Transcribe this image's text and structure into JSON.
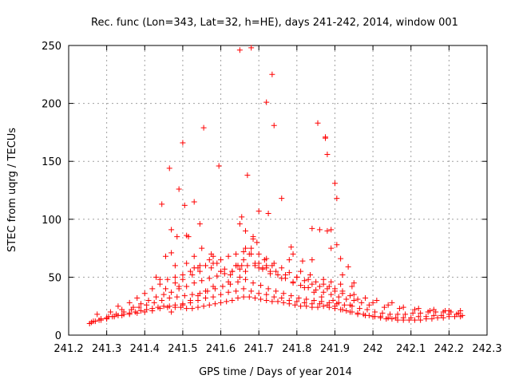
{
  "chart_data": {
    "type": "scatter",
    "title": "Rec. func (Lon=343, Lat=32, h=HE), days 241-242, 2014, window 001",
    "xlabel": "GPS time / Days of year 2014",
    "ylabel": "STEC from uqrg / TECUs",
    "xlim": [
      241.2,
      242.3
    ],
    "ylim": [
      0,
      250
    ],
    "xticks": [
      "241.2",
      "241.3",
      "241.4",
      "241.5",
      "241.6",
      "241.7",
      "241.8",
      "241.9",
      "242",
      "242.1",
      "242.2",
      "242.3"
    ],
    "yticks": [
      "0",
      "50",
      "100",
      "150",
      "200",
      "250"
    ],
    "grid": true,
    "marker": "plus",
    "color": "#ff0000",
    "series": [
      {
        "x": [
          241.255,
          241.27,
          241.285,
          241.3,
          241.315,
          241.33,
          241.345,
          241.36,
          241.375,
          241.39,
          241.405,
          241.42,
          241.435,
          241.45,
          241.465,
          241.48,
          241.495,
          241.51,
          241.525,
          241.54,
          241.555,
          241.57,
          241.585,
          241.6,
          241.615,
          241.63,
          241.645,
          241.66,
          241.675,
          241.69,
          241.705,
          241.72,
          241.735,
          241.75,
          241.765,
          241.78,
          241.795,
          241.81,
          241.825,
          241.84,
          241.855,
          241.87,
          241.885,
          241.9,
          241.915,
          241.93,
          241.945,
          241.96,
          241.975,
          241.99,
          242.005,
          242.02,
          242.035,
          242.05,
          242.065,
          242.08,
          242.095,
          242.11,
          242.125,
          242.14,
          242.155,
          242.17,
          242.185,
          242.2,
          242.215,
          242.23,
          241.26,
          241.28,
          241.3,
          241.32,
          241.34,
          241.36,
          241.38,
          241.4,
          241.42,
          241.44,
          241.46,
          241.48,
          241.5,
          241.52,
          241.54,
          241.56,
          241.58,
          241.6,
          241.62,
          241.64,
          241.66,
          241.68,
          241.7,
          241.72,
          241.74,
          241.76,
          241.78,
          241.8,
          241.82,
          241.84,
          241.86,
          241.88,
          241.9,
          241.92,
          241.94,
          241.96,
          241.98,
          242.0,
          242.02,
          242.04,
          242.06,
          242.08,
          242.1,
          242.12,
          242.14,
          242.16,
          242.18,
          242.2,
          242.22,
          242.235,
          241.265,
          241.285,
          241.305,
          241.325,
          241.345,
          241.365,
          241.385,
          241.405,
          241.425,
          241.445,
          241.465,
          241.485,
          241.505,
          241.525,
          241.545,
          241.565,
          241.585,
          241.605,
          241.625,
          241.645,
          241.665,
          241.685,
          241.705,
          241.725,
          241.745,
          241.765,
          241.785,
          241.805,
          241.825,
          241.845,
          241.865,
          241.885,
          241.905,
          241.925,
          241.945,
          241.965,
          241.985,
          242.005,
          242.025,
          242.045,
          242.065,
          242.085,
          242.105,
          242.125,
          242.145,
          242.165,
          242.185,
          242.205,
          242.225,
          241.275,
          241.31,
          241.34,
          241.37,
          241.39,
          241.41,
          241.43,
          241.45,
          241.47,
          241.49,
          241.51,
          241.53,
          241.55,
          241.57,
          241.59,
          241.61,
          241.63,
          241.65,
          241.67,
          241.69,
          241.71,
          241.73,
          241.75,
          241.77,
          241.79,
          241.81,
          241.83,
          241.85,
          241.87,
          241.89,
          241.91,
          241.93,
          241.95,
          241.97,
          241.99,
          242.03,
          242.07,
          242.11,
          242.15,
          242.19,
          242.23,
          241.33,
          241.36,
          241.38,
          241.4,
          241.42,
          241.44,
          241.46,
          241.48,
          241.5,
          241.52,
          241.54,
          241.56,
          241.58,
          241.6,
          241.62,
          241.64,
          241.66,
          241.68,
          241.7,
          241.72,
          241.74,
          241.76,
          241.78,
          241.8,
          241.82,
          241.84,
          241.86,
          241.88,
          241.9,
          241.92,
          241.94,
          241.96,
          242.0,
          242.04,
          242.08,
          242.12,
          242.16,
          242.2,
          241.455,
          241.48,
          241.5,
          241.525,
          241.545,
          241.575,
          241.6,
          241.625,
          241.645,
          241.66,
          241.68,
          241.7,
          241.72,
          241.745,
          241.77,
          241.8,
          241.83,
          241.85,
          241.87,
          241.885,
          241.9,
          241.92,
          241.95,
          241.98,
          242.01,
          242.05,
          241.47,
          241.5,
          241.52,
          241.54,
          241.56,
          241.58,
          241.62,
          241.65,
          241.665,
          241.69,
          241.71,
          241.73,
          241.76,
          241.79,
          241.82,
          241.845,
          241.865,
          241.895,
          241.91,
          241.94,
          241.43,
          241.455,
          241.47,
          241.49,
          241.505,
          241.515,
          241.53,
          241.55,
          241.57,
          241.59,
          241.61,
          241.63,
          241.655,
          241.675,
          241.695,
          241.72,
          241.75,
          241.78,
          241.81,
          241.835,
          241.87,
          241.89,
          241.915,
          241.945,
          241.445,
          241.465,
          241.48,
          241.5,
          241.51,
          241.53,
          241.545,
          241.555,
          241.58,
          241.595,
          241.64,
          241.655,
          241.665,
          241.67,
          241.685,
          241.7,
          241.715,
          241.725,
          241.735,
          241.74,
          241.76,
          241.785,
          241.815,
          241.84,
          241.86,
          241.875,
          241.88,
          241.89,
          241.9,
          241.905,
          241.92,
          241.95,
          241.47,
          241.485,
          241.51,
          241.53,
          241.545,
          241.575,
          241.65,
          241.665,
          241.685,
          241.72,
          241.735,
          241.855,
          241.875,
          241.88,
          241.905,
          241.44,
          241.49,
          241.6,
          241.64,
          241.7,
          241.79,
          241.84,
          241.89,
          241.915,
          241.935
        ],
        "y": [
          10,
          12,
          13,
          14,
          16,
          17,
          18,
          19,
          20,
          21,
          22,
          23,
          24,
          25,
          25,
          24,
          24,
          23,
          23,
          24,
          25,
          26,
          27,
          28,
          29,
          30,
          32,
          33,
          33,
          32,
          31,
          30,
          29,
          29,
          28,
          27,
          26,
          25,
          25,
          24,
          24,
          25,
          24,
          23,
          22,
          21,
          20,
          19,
          18,
          17,
          16,
          15,
          14,
          14,
          13,
          13,
          13,
          13,
          13,
          14,
          14,
          15,
          15,
          16,
          16,
          16,
          11,
          13,
          15,
          16,
          17,
          18,
          19,
          20,
          21,
          23,
          24,
          26,
          27,
          28,
          30,
          32,
          33,
          35,
          37,
          38,
          40,
          38,
          36,
          35,
          33,
          32,
          30,
          29,
          28,
          27,
          27,
          26,
          25,
          22,
          20,
          18,
          17,
          16,
          16,
          15,
          15,
          15,
          15,
          16,
          16,
          17,
          17,
          18,
          18,
          17,
          12,
          14,
          16,
          18,
          20,
          22,
          24,
          26,
          28,
          30,
          32,
          33,
          34,
          35,
          36,
          38,
          40,
          42,
          44,
          46,
          48,
          45,
          43,
          40,
          38,
          36,
          34,
          32,
          31,
          30,
          29,
          28,
          27,
          26,
          25,
          23,
          22,
          20,
          19,
          18,
          18,
          18,
          19,
          19,
          20,
          20,
          20,
          20,
          19,
          18,
          20,
          22,
          24,
          27,
          30,
          33,
          35,
          37,
          40,
          42,
          45,
          47,
          49,
          51,
          53,
          55,
          57,
          60,
          62,
          58,
          55,
          52,
          49,
          46,
          43,
          41,
          39,
          37,
          35,
          33,
          31,
          30,
          28,
          26,
          24,
          23,
          22,
          21,
          21,
          21,
          25,
          28,
          32,
          36,
          40,
          44,
          48,
          50,
          52,
          55,
          58,
          60,
          62,
          65,
          68,
          70,
          72,
          75,
          70,
          66,
          62,
          58,
          54,
          50,
          47,
          44,
          42,
          40,
          38,
          36,
          34,
          31,
          28,
          26,
          24,
          23,
          22,
          21,
          40,
          45,
          48,
          52,
          55,
          58,
          55,
          52,
          60,
          65,
          70,
          62,
          58,
          55,
          52,
          50,
          48,
          46,
          44,
          42,
          40,
          38,
          35,
          32,
          30,
          28,
          20,
          26,
          30,
          34,
          38,
          42,
          46,
          50,
          55,
          60,
          57,
          53,
          49,
          45,
          41,
          37,
          33,
          30,
          28,
          26,
          50,
          68,
          91,
          126,
          112,
          85,
          68,
          75,
          65,
          62,
          57,
          55,
          60,
          70,
          80,
          60,
          52,
          65,
          55,
          52,
          48,
          46,
          44,
          42,
          113,
          144,
          60,
          166,
          86,
          115,
          96,
          179,
          68,
          146,
          60,
          102,
          75,
          138,
          83,
          107,
          65,
          105,
          225,
          181,
          118,
          76,
          64,
          92,
          91,
          171,
          90,
          91,
          131,
          118,
          52,
          45,
          71,
          85,
          62,
          58,
          60,
          70,
          96,
          90,
          85,
          201,
          60,
          183,
          170,
          156,
          78,
          48,
          42,
          55,
          60,
          58,
          70,
          65,
          75,
          66,
          59
        ]
      },
      {
        "x": [
          241.65,
          241.68
        ],
        "y": [
          246,
          248
        ]
      }
    ]
  }
}
